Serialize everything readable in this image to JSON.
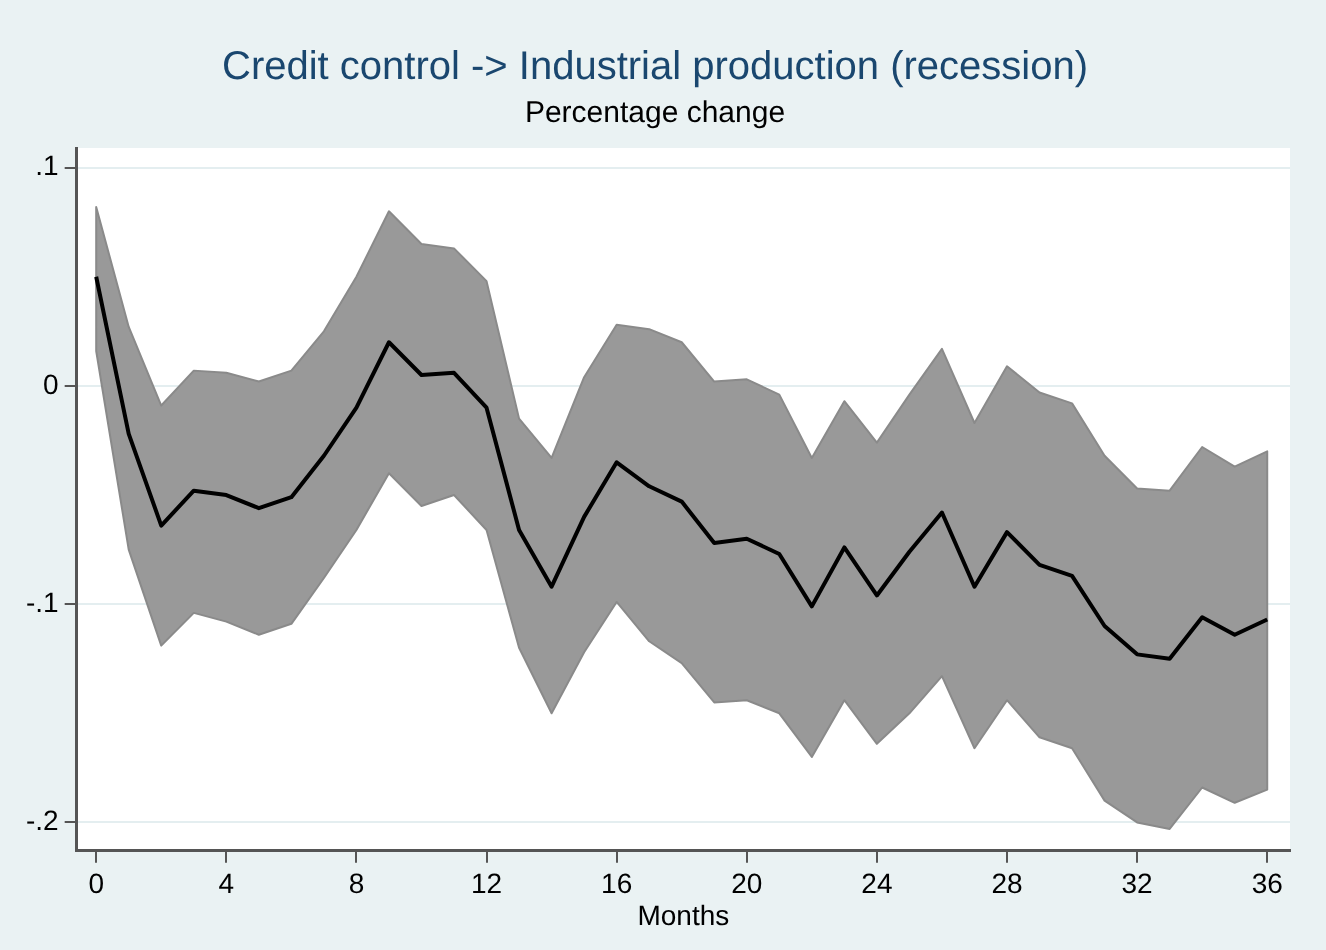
{
  "chart_data": {
    "type": "line",
    "title": "Credit control -> Industrial production (recession)",
    "subtitle": "Percentage change",
    "xlabel": "Months",
    "x": [
      0,
      1,
      2,
      3,
      4,
      5,
      6,
      7,
      8,
      9,
      10,
      11,
      12,
      13,
      14,
      15,
      16,
      17,
      18,
      19,
      20,
      21,
      22,
      23,
      24,
      25,
      26,
      27,
      28,
      29,
      30,
      31,
      32,
      33,
      34,
      35,
      36
    ],
    "series": [
      {
        "color": "#000000",
        "values": [
          0.05,
          -0.022,
          -0.064,
          -0.048,
          -0.05,
          -0.056,
          -0.051,
          -0.032,
          -0.01,
          0.02,
          0.005,
          0.006,
          -0.01,
          -0.066,
          -0.092,
          -0.06,
          -0.035,
          -0.046,
          -0.053,
          -0.072,
          -0.07,
          -0.077,
          -0.101,
          -0.074,
          -0.096,
          -0.076,
          -0.058,
          -0.092,
          -0.067,
          -0.082,
          -0.087,
          -0.11,
          -0.123,
          -0.125,
          -0.106,
          -0.114,
          -0.107
        ],
        "lower": [
          0.016,
          -0.075,
          -0.119,
          -0.104,
          -0.108,
          -0.114,
          -0.109,
          -0.088,
          -0.066,
          -0.04,
          -0.055,
          -0.05,
          -0.066,
          -0.12,
          -0.15,
          -0.122,
          -0.099,
          -0.117,
          -0.127,
          -0.145,
          -0.144,
          -0.15,
          -0.17,
          -0.144,
          -0.164,
          -0.15,
          -0.133,
          -0.166,
          -0.144,
          -0.161,
          -0.166,
          -0.19,
          -0.2,
          -0.203,
          -0.184,
          -0.191,
          -0.185
        ],
        "upper": [
          0.082,
          0.027,
          -0.009,
          0.007,
          0.006,
          0.002,
          0.007,
          0.025,
          0.05,
          0.08,
          0.065,
          0.063,
          0.048,
          -0.015,
          -0.033,
          0.004,
          0.028,
          0.026,
          0.02,
          0.002,
          0.003,
          -0.004,
          -0.033,
          -0.007,
          -0.026,
          -0.004,
          0.017,
          -0.017,
          0.009,
          -0.003,
          -0.008,
          -0.032,
          -0.047,
          -0.048,
          -0.028,
          -0.037,
          -0.03
        ]
      }
    ],
    "xlim": [
      -0.6,
      36.7
    ],
    "xticks": [
      0,
      4,
      8,
      12,
      16,
      20,
      24,
      28,
      32,
      36
    ],
    "ylim": [
      -0.213,
      0.109
    ],
    "yticks": [
      {
        "value": -0.2,
        "label": "-.2"
      },
      {
        "value": -0.1,
        "label": "-.1"
      },
      {
        "value": 0,
        "label": "0"
      },
      {
        "value": 0.1,
        "label": ".1"
      }
    ],
    "grid": "y",
    "legend": false,
    "marker": "none",
    "line_style": "solid"
  }
}
